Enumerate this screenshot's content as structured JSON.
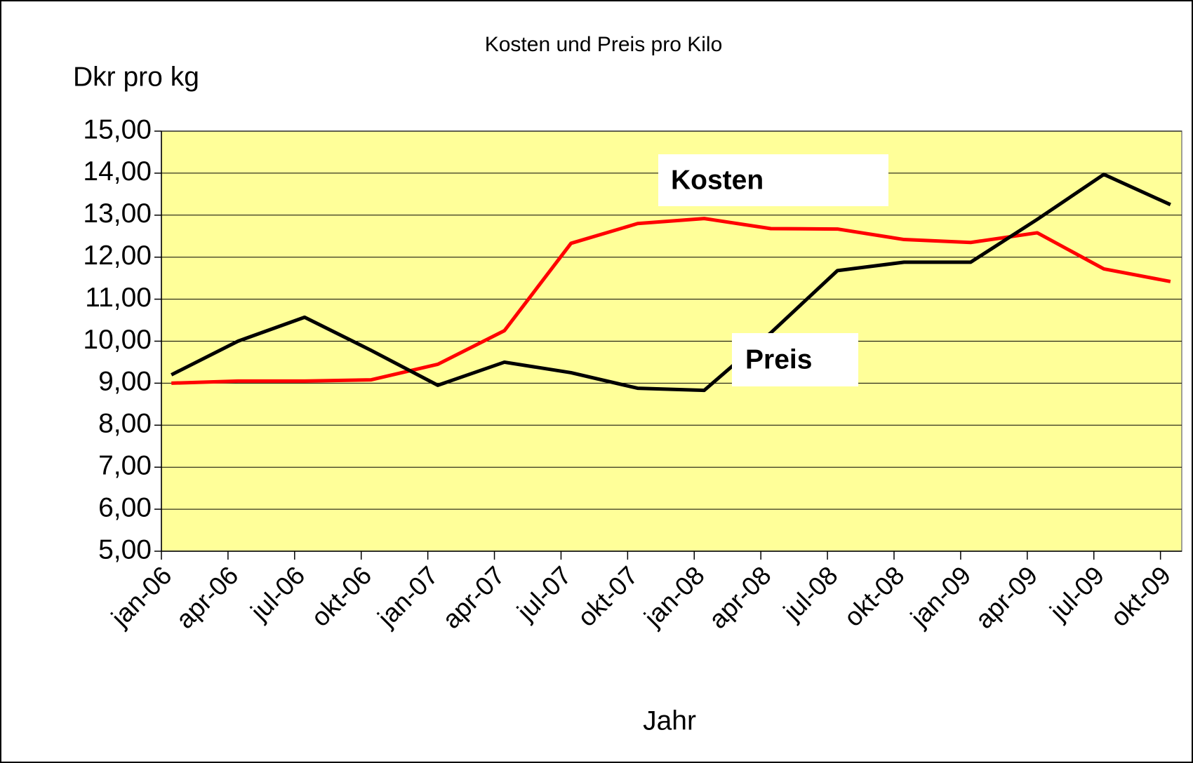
{
  "chart_data": {
    "type": "line",
    "title": "Kosten und Preis pro Kilo",
    "y_label": "Dkr pro kg",
    "x_label": "Jahr",
    "categories": [
      "jan-06",
      "apr-06",
      "jul-06",
      "okt-06",
      "jan-07",
      "apr-07",
      "jul-07",
      "okt-07",
      "jan-08",
      "apr-08",
      "jul-08",
      "okt-08",
      "jan-09",
      "apr-09",
      "jul-09",
      "okt-09"
    ],
    "series": [
      {
        "name": "Kosten",
        "color": "#ff0000",
        "values": [
          9.0,
          9.05,
          9.05,
          9.08,
          9.45,
          10.25,
          12.33,
          12.8,
          12.92,
          12.68,
          12.67,
          12.42,
          12.35,
          12.58,
          11.72,
          11.42
        ]
      },
      {
        "name": "Preis",
        "color": "#000000",
        "values": [
          9.2,
          10.0,
          10.57,
          9.78,
          8.95,
          9.5,
          9.25,
          8.88,
          8.83,
          10.2,
          11.68,
          11.88,
          11.88,
          12.9,
          13.97,
          13.25
        ]
      }
    ],
    "ylim": [
      5,
      15
    ],
    "yticks": [
      {
        "value": 5,
        "label": "5,00"
      },
      {
        "value": 6,
        "label": "6,00"
      },
      {
        "value": 7,
        "label": "7,00"
      },
      {
        "value": 8,
        "label": "8,00"
      },
      {
        "value": 9,
        "label": "9,00"
      },
      {
        "value": 10,
        "label": "10,00"
      },
      {
        "value": 11,
        "label": "11,00"
      },
      {
        "value": 12,
        "label": "12,00"
      },
      {
        "value": 13,
        "label": "13,00"
      },
      {
        "value": 14,
        "label": "14,00"
      },
      {
        "value": 15,
        "label": "15,00"
      }
    ],
    "grid": true,
    "plot_background": "#ffff99"
  }
}
